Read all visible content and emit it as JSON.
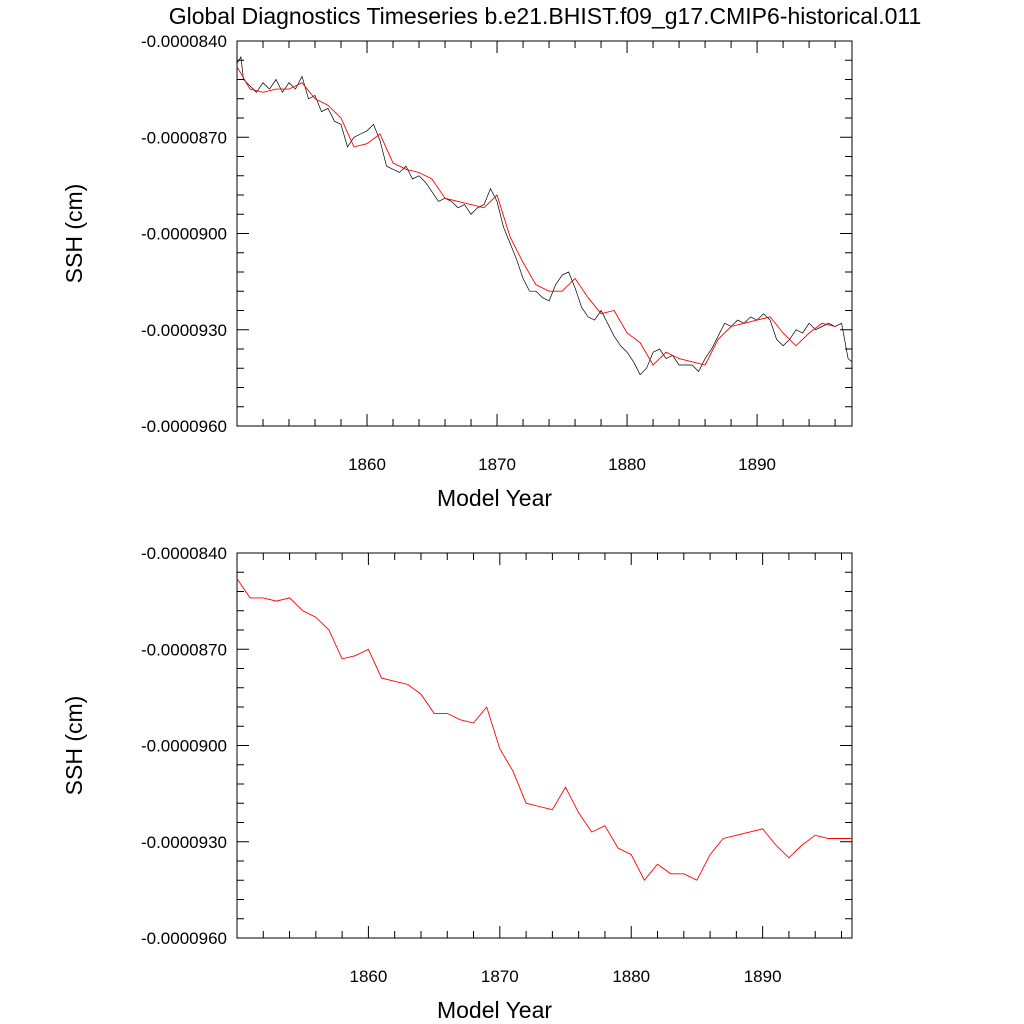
{
  "title": "Global Diagnostics Timeseries b.e21.BHIST.f09_g17.CMIP6-historical.011",
  "colors": {
    "monthly": "#000000",
    "annual_mean": "#ff0000"
  },
  "chart_data": [
    {
      "type": "line",
      "xlabel": "Model Year",
      "ylabel": "SSH (cm)",
      "xlim": [
        1850,
        1897.3
      ],
      "ylim": [
        -9.6e-05,
        -8.4e-05
      ],
      "xticks": [
        "1860",
        "1870",
        "1880",
        "1890"
      ],
      "yticks": [
        "-0.0000840",
        "-0.0000870",
        "-0.0000900",
        "-0.0000930",
        "-0.0000960"
      ],
      "series": [
        {
          "kind": "monthly",
          "x": [
            1850.0,
            1850.3,
            1850.5,
            1851.0,
            1851.5,
            1852.0,
            1852.5,
            1853.0,
            1853.5,
            1854.0,
            1854.5,
            1855.0,
            1855.5,
            1856.0,
            1856.5,
            1857.0,
            1857.5,
            1858.0,
            1858.5,
            1859.0,
            1859.5,
            1860.0,
            1860.5,
            1861.0,
            1861.5,
            1862.0,
            1862.5,
            1863.0,
            1863.5,
            1864.0,
            1864.5,
            1865.0,
            1865.5,
            1866.0,
            1866.5,
            1867.0,
            1867.5,
            1868.0,
            1868.5,
            1869.0,
            1869.5,
            1870.0,
            1870.5,
            1871.0,
            1871.5,
            1872.0,
            1872.5,
            1873.0,
            1873.5,
            1874.0,
            1874.5,
            1875.0,
            1875.5,
            1876.0,
            1876.5,
            1877.0,
            1877.5,
            1878.0,
            1878.5,
            1879.0,
            1879.5,
            1880.0,
            1880.5,
            1881.0,
            1881.5,
            1882.0,
            1882.5,
            1883.0,
            1883.5,
            1884.0,
            1884.5,
            1885.0,
            1885.5,
            1886.0,
            1886.5,
            1887.0,
            1887.5,
            1888.0,
            1888.5,
            1889.0,
            1889.5,
            1890.0,
            1890.5,
            1891.0,
            1891.5,
            1892.0,
            1892.5,
            1893.0,
            1893.5,
            1894.0,
            1894.5,
            1895.0,
            1895.5,
            1896.0,
            1896.5,
            1897.0,
            1897.3
          ],
          "y": [
            -8.47e-05,
            -8.45e-05,
            -8.52e-05,
            -8.54e-05,
            -8.56e-05,
            -8.53e-05,
            -8.55e-05,
            -8.52e-05,
            -8.56e-05,
            -8.53e-05,
            -8.55e-05,
            -8.51e-05,
            -8.58e-05,
            -8.57e-05,
            -8.62e-05,
            -8.61e-05,
            -8.65e-05,
            -8.66e-05,
            -8.73e-05,
            -8.7e-05,
            -8.69e-05,
            -8.68e-05,
            -8.66e-05,
            -8.71e-05,
            -8.79e-05,
            -8.8e-05,
            -8.81e-05,
            -8.79e-05,
            -8.83e-05,
            -8.82e-05,
            -8.84e-05,
            -8.87e-05,
            -8.9e-05,
            -8.89e-05,
            -8.9e-05,
            -8.92e-05,
            -8.91e-05,
            -8.94e-05,
            -8.92e-05,
            -8.91e-05,
            -8.86e-05,
            -8.9e-05,
            -8.98e-05,
            -9.03e-05,
            -9.08e-05,
            -9.14e-05,
            -9.18e-05,
            -9.18e-05,
            -9.2e-05,
            -9.21e-05,
            -9.16e-05,
            -9.13e-05,
            -9.12e-05,
            -9.17e-05,
            -9.23e-05,
            -9.26e-05,
            -9.27e-05,
            -9.24e-05,
            -9.28e-05,
            -9.32e-05,
            -9.35e-05,
            -9.37e-05,
            -9.4e-05,
            -9.44e-05,
            -9.42e-05,
            -9.37e-05,
            -9.36e-05,
            -9.39e-05,
            -9.38e-05,
            -9.41e-05,
            -9.41e-05,
            -9.41e-05,
            -9.43e-05,
            -9.39e-05,
            -9.36e-05,
            -9.32e-05,
            -9.28e-05,
            -9.29e-05,
            -9.27e-05,
            -9.28e-05,
            -9.26e-05,
            -9.27e-05,
            -9.25e-05,
            -9.27e-05,
            -9.33e-05,
            -9.35e-05,
            -9.33e-05,
            -9.3e-05,
            -9.31e-05,
            -9.28e-05,
            -9.3e-05,
            -9.29e-05,
            -9.28e-05,
            -9.29e-05,
            -9.28e-05,
            -9.39e-05,
            -9.4e-05
          ]
        },
        {
          "kind": "annual_mean",
          "x": [
            1850.0,
            1851.0,
            1852.0,
            1853.0,
            1854.0,
            1855.0,
            1856.0,
            1857.0,
            1858.0,
            1859.0,
            1860.0,
            1861.0,
            1862.0,
            1863.0,
            1864.0,
            1865.0,
            1866.0,
            1867.0,
            1868.0,
            1869.0,
            1870.0,
            1871.0,
            1872.0,
            1873.0,
            1874.0,
            1875.0,
            1876.0,
            1877.0,
            1878.0,
            1879.0,
            1880.0,
            1881.0,
            1882.0,
            1883.0,
            1884.0,
            1885.0,
            1886.0,
            1887.0,
            1888.0,
            1889.0,
            1890.0,
            1891.0,
            1892.0,
            1893.0,
            1894.0,
            1895.0,
            1896.0
          ],
          "y": [
            -8.48e-05,
            -8.55e-05,
            -8.56e-05,
            -8.55e-05,
            -8.55e-05,
            -8.53e-05,
            -8.58e-05,
            -8.6e-05,
            -8.64e-05,
            -8.73e-05,
            -8.72e-05,
            -8.69e-05,
            -8.78e-05,
            -8.8e-05,
            -8.81e-05,
            -8.83e-05,
            -8.89e-05,
            -8.9e-05,
            -8.91e-05,
            -8.92e-05,
            -8.88e-05,
            -9.01e-05,
            -9.09e-05,
            -9.16e-05,
            -9.18e-05,
            -9.18e-05,
            -9.14e-05,
            -9.2e-05,
            -9.25e-05,
            -9.24e-05,
            -9.31e-05,
            -9.34e-05,
            -9.41e-05,
            -9.37e-05,
            -9.39e-05,
            -9.4e-05,
            -9.41e-05,
            -9.33e-05,
            -9.29e-05,
            -9.28e-05,
            -9.27e-05,
            -9.26e-05,
            -9.31e-05,
            -9.35e-05,
            -9.31e-05,
            -9.28e-05,
            -9.29e-05
          ]
        }
      ]
    },
    {
      "type": "line",
      "xlabel": "Model Year",
      "ylabel": "SSH (cm)",
      "xlim": [
        1850,
        1896.8
      ],
      "ylim": [
        -9.6e-05,
        -8.4e-05
      ],
      "xticks": [
        "1860",
        "1870",
        "1880",
        "1890"
      ],
      "yticks": [
        "-0.0000840",
        "-0.0000870",
        "-0.0000900",
        "-0.0000930",
        "-0.0000960"
      ],
      "series": [
        {
          "kind": "annual_mean",
          "x": [
            1850.0,
            1851.0,
            1852.0,
            1853.0,
            1854.0,
            1855.0,
            1856.0,
            1857.0,
            1858.0,
            1859.0,
            1860.0,
            1861.0,
            1862.0,
            1863.0,
            1864.0,
            1865.0,
            1866.0,
            1867.0,
            1868.0,
            1869.0,
            1870.0,
            1871.0,
            1872.0,
            1873.0,
            1874.0,
            1875.0,
            1876.0,
            1877.0,
            1878.0,
            1879.0,
            1880.0,
            1881.0,
            1882.0,
            1883.0,
            1884.0,
            1885.0,
            1886.0,
            1887.0,
            1888.0,
            1889.0,
            1890.0,
            1891.0,
            1892.0,
            1893.0,
            1894.0,
            1895.0,
            1896.0,
            1896.8
          ],
          "y": [
            -8.48e-05,
            -8.54e-05,
            -8.54e-05,
            -8.55e-05,
            -8.54e-05,
            -8.58e-05,
            -8.6e-05,
            -8.64e-05,
            -8.73e-05,
            -8.72e-05,
            -8.7e-05,
            -8.79e-05,
            -8.8e-05,
            -8.81e-05,
            -8.84e-05,
            -8.9e-05,
            -8.9e-05,
            -8.92e-05,
            -8.93e-05,
            -8.88e-05,
            -9.01e-05,
            -9.08e-05,
            -9.18e-05,
            -9.19e-05,
            -9.2e-05,
            -9.13e-05,
            -9.21e-05,
            -9.27e-05,
            -9.25e-05,
            -9.32e-05,
            -9.34e-05,
            -9.42e-05,
            -9.37e-05,
            -9.4e-05,
            -9.4e-05,
            -9.42e-05,
            -9.34e-05,
            -9.29e-05,
            -9.28e-05,
            -9.27e-05,
            -9.26e-05,
            -9.31e-05,
            -9.35e-05,
            -9.31e-05,
            -9.28e-05,
            -9.29e-05,
            -9.29e-05,
            -9.29e-05
          ]
        }
      ]
    }
  ]
}
